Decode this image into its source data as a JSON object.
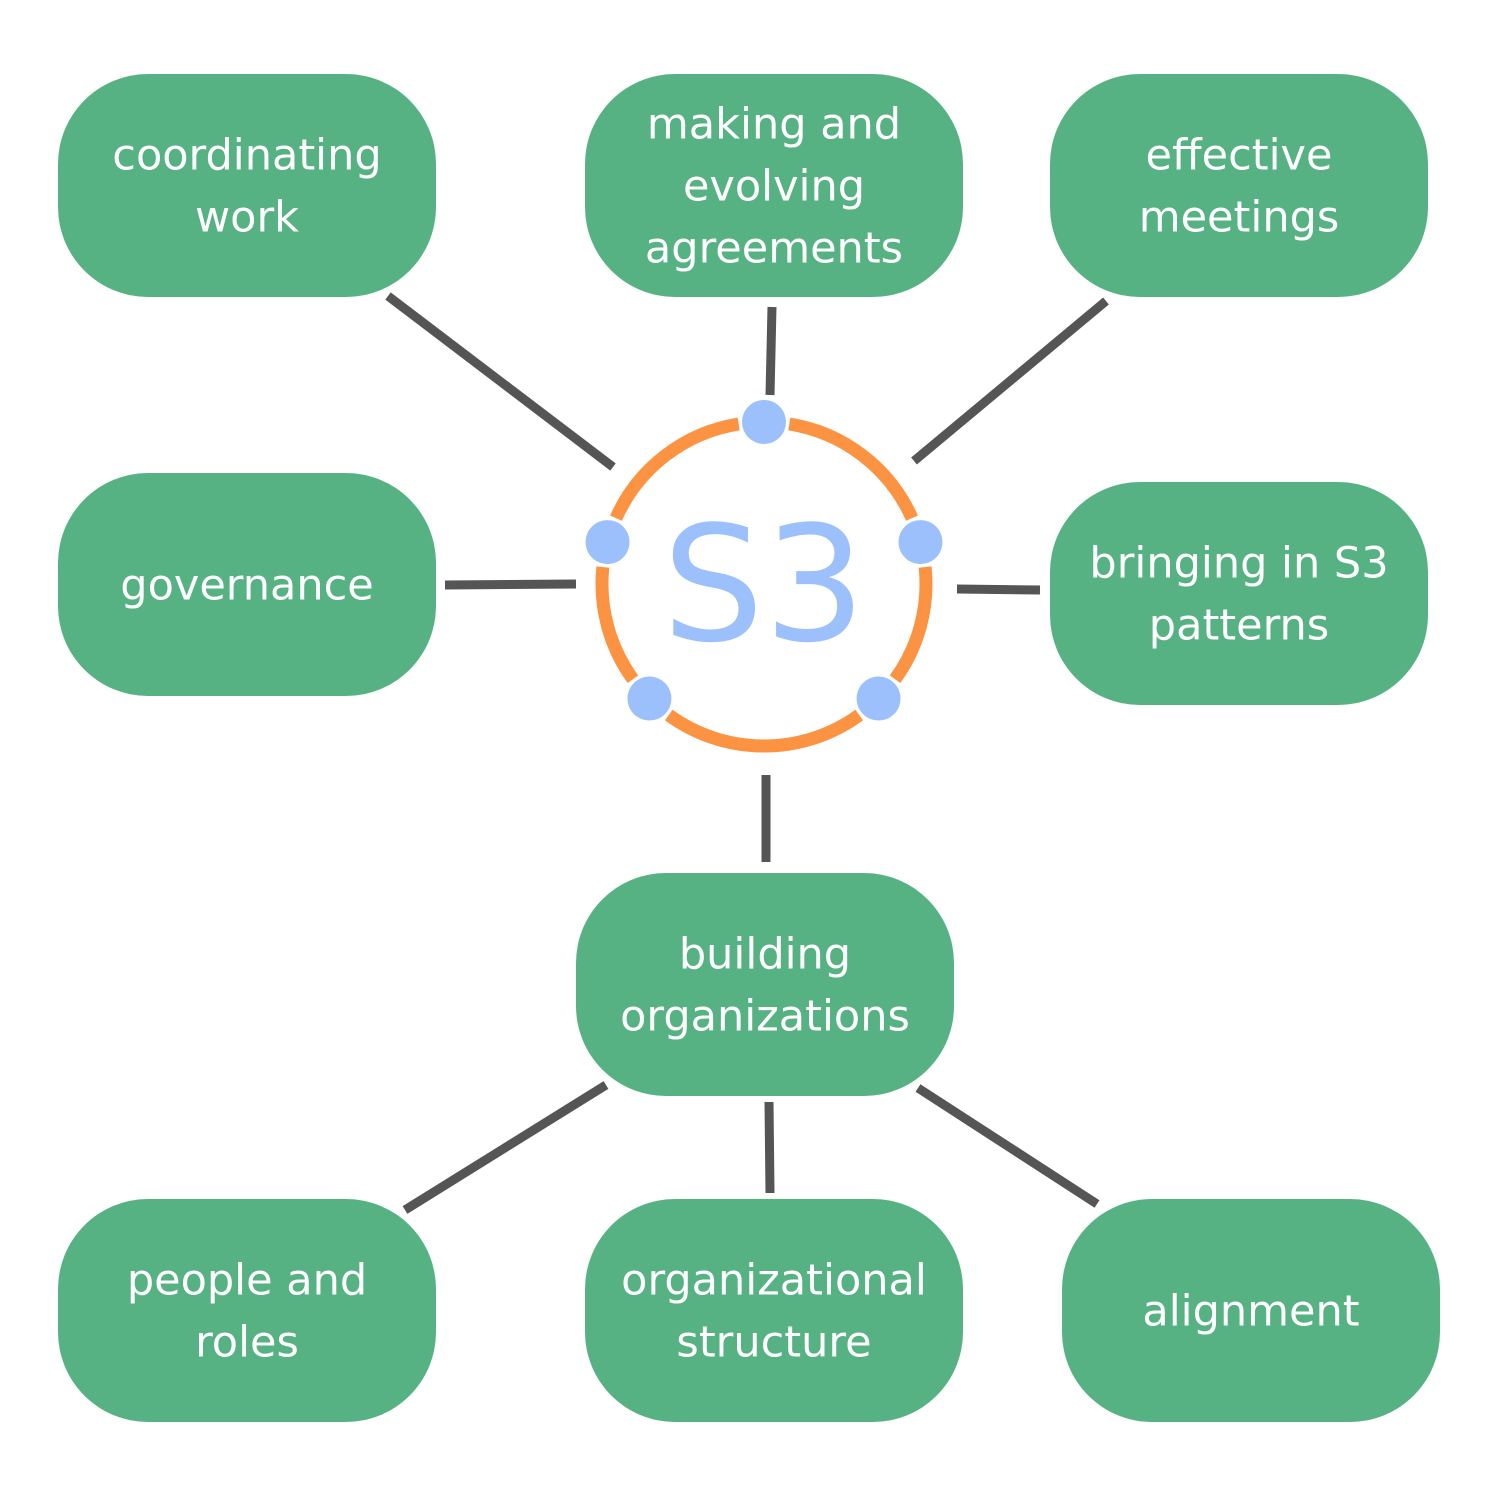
{
  "colors": {
    "node_fill": "#57b283",
    "node_text": "#ffffff",
    "connector": "#555555",
    "ring": "#fc9342",
    "ring_dot": "#9cc0fb",
    "center_text": "#9cc0fb",
    "background": "#ffffff"
  },
  "center": {
    "label": "S3"
  },
  "nodes": [
    {
      "id": "coordinating-work",
      "lines": [
        "coordinating",
        "work"
      ]
    },
    {
      "id": "making-and-evolving-agreements",
      "lines": [
        "making and",
        "evolving",
        "agreements"
      ]
    },
    {
      "id": "effective-meetings",
      "lines": [
        "effective",
        "meetings"
      ]
    },
    {
      "id": "governance",
      "lines": [
        "governance"
      ]
    },
    {
      "id": "bringing-in-s3-patterns",
      "lines": [
        "bringing in S3",
        "patterns"
      ]
    },
    {
      "id": "building-organizations",
      "lines": [
        "building",
        "organizations"
      ]
    },
    {
      "id": "people-and-roles",
      "lines": [
        "people and",
        "roles"
      ]
    },
    {
      "id": "organizational-structure",
      "lines": [
        "organizational",
        "structure"
      ]
    },
    {
      "id": "alignment",
      "lines": [
        "alignment"
      ]
    }
  ]
}
